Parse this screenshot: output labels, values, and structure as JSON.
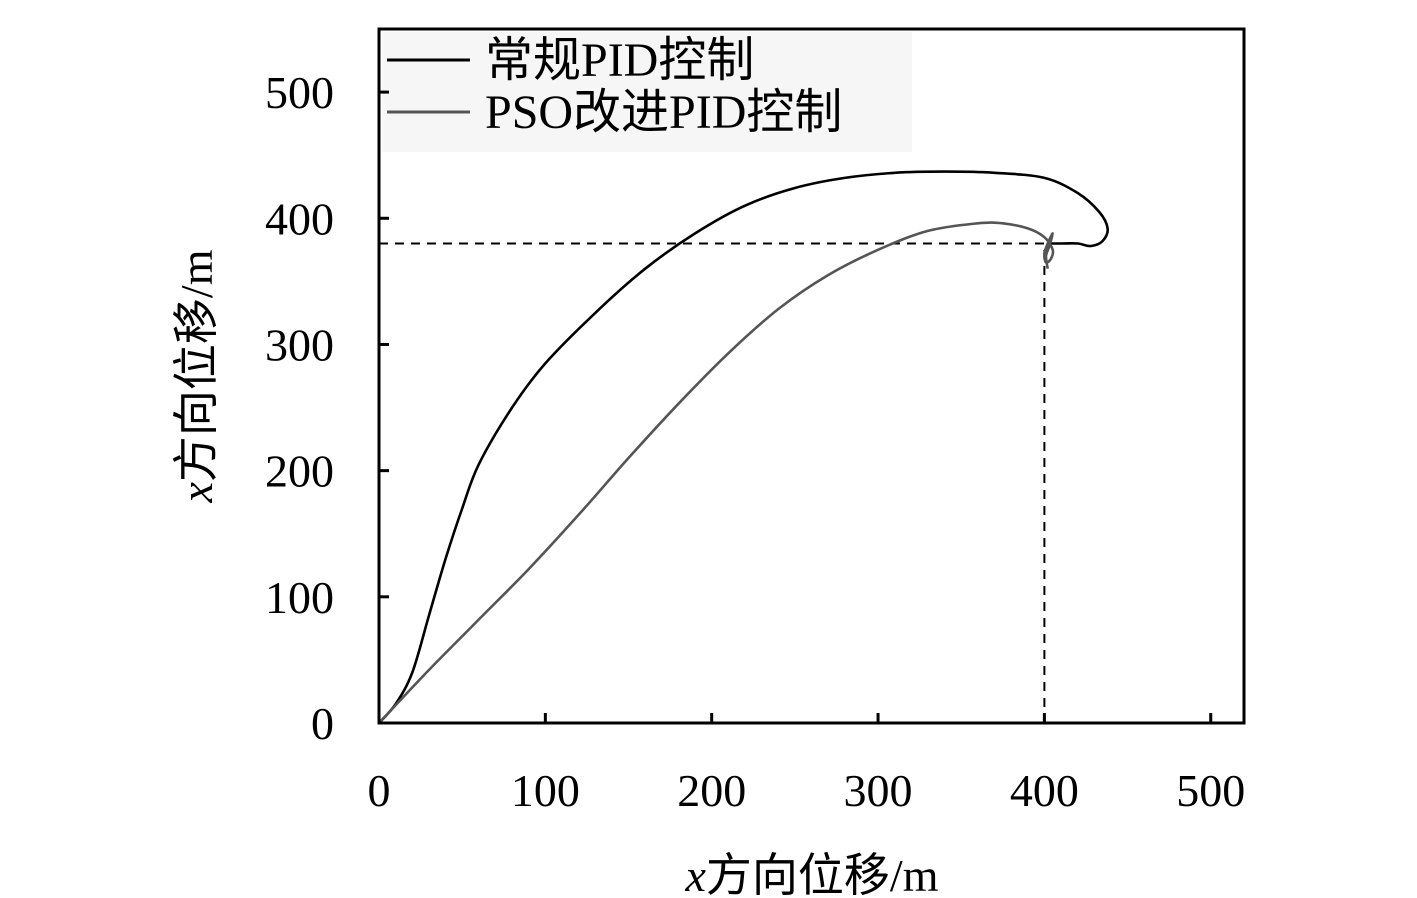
{
  "chart_data": {
    "type": "line",
    "title": "",
    "xlabel_var": "x",
    "xlabel_text": "方向位移/m",
    "ylabel_var": "x",
    "ylabel_text": "方向位移/m",
    "xlim": [
      0,
      520
    ],
    "ylim": [
      0,
      550
    ],
    "xticks": [
      0,
      100,
      200,
      300,
      400,
      500
    ],
    "yticks": [
      0,
      100,
      200,
      300,
      400,
      500
    ],
    "xtick_labels": [
      "0",
      "100",
      "200",
      "300",
      "400",
      "500"
    ],
    "ytick_labels": [
      "0",
      "100",
      "200",
      "300",
      "400",
      "500"
    ],
    "grid": false,
    "legend_position": "top-left",
    "series": [
      {
        "name": "常规PID控制",
        "color": "#000000",
        "points": [
          [
            0,
            0
          ],
          [
            10,
            15
          ],
          [
            20,
            40
          ],
          [
            30,
            85
          ],
          [
            40,
            130
          ],
          [
            50,
            170
          ],
          [
            60,
            205
          ],
          [
            80,
            250
          ],
          [
            100,
            285
          ],
          [
            130,
            325
          ],
          [
            160,
            360
          ],
          [
            190,
            388
          ],
          [
            220,
            410
          ],
          [
            250,
            424
          ],
          [
            280,
            432
          ],
          [
            310,
            436
          ],
          [
            340,
            437
          ],
          [
            370,
            436
          ],
          [
            400,
            432
          ],
          [
            420,
            420
          ],
          [
            433,
            405
          ],
          [
            438,
            392
          ],
          [
            435,
            382
          ],
          [
            428,
            378
          ],
          [
            420,
            380
          ],
          [
            410,
            380
          ],
          [
            403,
            380
          ]
        ]
      },
      {
        "name": "PSO改进PID控制",
        "color": "#555555",
        "points": [
          [
            0,
            0
          ],
          [
            30,
            42
          ],
          [
            60,
            82
          ],
          [
            90,
            122
          ],
          [
            120,
            165
          ],
          [
            150,
            210
          ],
          [
            180,
            253
          ],
          [
            210,
            293
          ],
          [
            240,
            328
          ],
          [
            270,
            355
          ],
          [
            300,
            375
          ],
          [
            330,
            390
          ],
          [
            360,
            396
          ],
          [
            375,
            396
          ],
          [
            390,
            392
          ],
          [
            400,
            385
          ],
          [
            405,
            375
          ],
          [
            404,
            368
          ],
          [
            401,
            365
          ],
          [
            400,
            372
          ],
          [
            402,
            380
          ],
          [
            405,
            388
          ],
          [
            403,
            378
          ],
          [
            401,
            370
          ],
          [
            402,
            360
          ]
        ]
      }
    ],
    "reference_lines": [
      {
        "type": "horizontal",
        "y": 380,
        "x_from": 0,
        "x_to": 400,
        "style": "dashed"
      },
      {
        "type": "vertical",
        "x": 400,
        "y_from": 0,
        "y_to": 380,
        "style": "dashed"
      }
    ]
  }
}
